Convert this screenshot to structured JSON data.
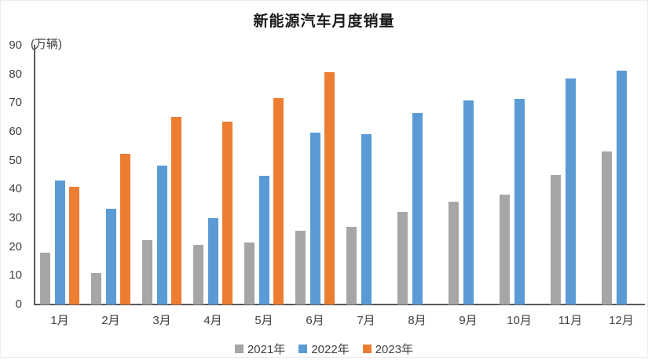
{
  "title": "新能源汽车月度销量",
  "y_axis_unit": "(万辆)",
  "colors": {
    "series_2021": "#A6A6A6",
    "series_2022": "#5B9BD5",
    "series_2023": "#ED7D31",
    "axis_line": "#595959",
    "text": "#404040",
    "title_text": "#1a1a1a"
  },
  "chart_data": {
    "type": "bar",
    "title": "新能源汽车月度销量",
    "ylabel": "(万辆)",
    "xlabel": "",
    "categories": [
      "1月",
      "2月",
      "3月",
      "4月",
      "5月",
      "6月",
      "7月",
      "8月",
      "9月",
      "10月",
      "11月",
      "12月"
    ],
    "series": [
      {
        "name": "2021年",
        "color": "#A6A6A6",
        "values": [
          17.9,
          10.8,
          22.3,
          20.6,
          21.6,
          25.6,
          27.1,
          32.1,
          35.7,
          38.3,
          45.0,
          53.1
        ]
      },
      {
        "name": "2022年",
        "color": "#5B9BD5",
        "values": [
          43.1,
          33.4,
          48.4,
          29.9,
          44.7,
          59.6,
          59.3,
          66.6,
          70.8,
          71.4,
          78.6,
          81.4
        ]
      },
      {
        "name": "2023年",
        "color": "#ED7D31",
        "values": [
          40.8,
          52.5,
          65.3,
          63.6,
          71.7,
          80.6,
          null,
          null,
          null,
          null,
          null,
          null
        ]
      }
    ],
    "ylim": [
      0,
      90
    ],
    "yticks": [
      0,
      10,
      20,
      30,
      40,
      50,
      60,
      70,
      80,
      90
    ],
    "grid": false,
    "legend_position": "bottom"
  }
}
